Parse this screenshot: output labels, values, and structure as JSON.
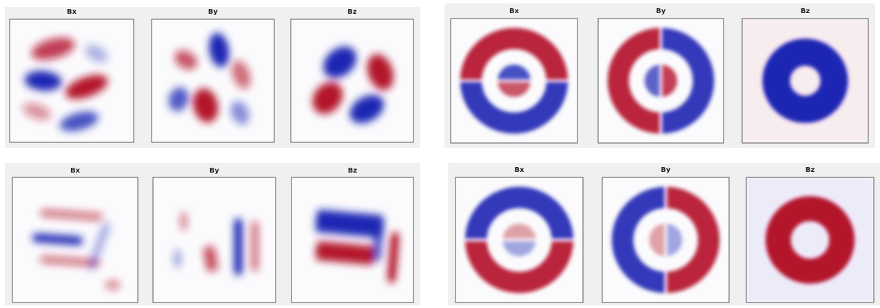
{
  "panels": [
    {
      "plots": [
        {
          "title": "Bx"
        },
        {
          "title": "By"
        },
        {
          "title": "Bz"
        }
      ]
    },
    {
      "plots": [
        {
          "title": "Bx"
        },
        {
          "title": "By"
        },
        {
          "title": "Bz"
        }
      ]
    },
    {
      "plots": [
        {
          "title": "Bx"
        },
        {
          "title": "By"
        },
        {
          "title": "Bz"
        }
      ]
    },
    {
      "plots": [
        {
          "title": "Bx"
        },
        {
          "title": "By"
        },
        {
          "title": "Bz"
        }
      ]
    }
  ]
}
